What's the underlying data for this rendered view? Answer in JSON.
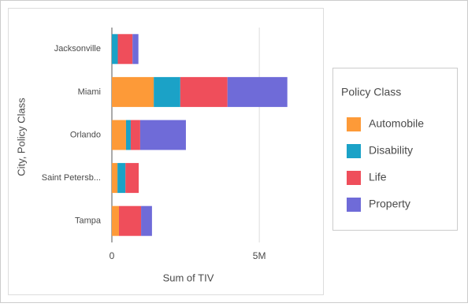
{
  "chart_data": {
    "type": "bar",
    "orientation": "horizontal",
    "stacked": true,
    "x_label": "Sum of TIV",
    "y_label": "City, Policy Class",
    "legend_title": "Policy Class",
    "categories": [
      "Jacksonville",
      "Miami",
      "Orlando",
      "Saint Petersb...",
      "Tampa"
    ],
    "series": [
      {
        "name": "Automobile",
        "color": "#fd9a38",
        "values": [
          0,
          1420000,
          480000,
          190000,
          240000
        ]
      },
      {
        "name": "Disability",
        "color": "#1ba2c7",
        "values": [
          200000,
          900000,
          160000,
          270000,
          0
        ]
      },
      {
        "name": "Life",
        "color": "#ef4e5b",
        "values": [
          500000,
          1600000,
          320000,
          450000,
          750000
        ]
      },
      {
        "name": "Property",
        "color": "#6f6bd8",
        "values": [
          200000,
          2030000,
          1550000,
          0,
          370000
        ]
      }
    ],
    "xlim": [
      0,
      7000000
    ],
    "xticks": [
      0,
      {
        "value": 5000000,
        "label": "5M"
      }
    ],
    "grid": true
  }
}
